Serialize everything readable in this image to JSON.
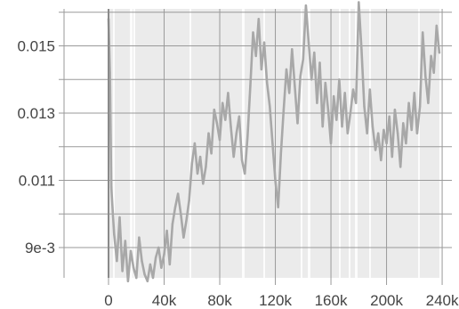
{
  "chart_data": {
    "type": "line",
    "title": "",
    "xlabel": "",
    "ylabel": "",
    "xlim": [
      -32000,
      247000
    ],
    "ylim": [
      0.0081,
      0.0161
    ],
    "x_ticks": [
      {
        "value": 0,
        "label": "0"
      },
      {
        "value": 40000,
        "label": "40k"
      },
      {
        "value": 80000,
        "label": "80k"
      },
      {
        "value": 120000,
        "label": "120k"
      },
      {
        "value": 160000,
        "label": "160k"
      },
      {
        "value": 200000,
        "label": "200k"
      },
      {
        "value": 240000,
        "label": "240k"
      }
    ],
    "y_ticks": [
      {
        "value": 0.009,
        "label": "9e-3"
      },
      {
        "value": 0.011,
        "label": "0.011"
      },
      {
        "value": 0.013,
        "label": "0.013"
      },
      {
        "value": 0.015,
        "label": "0.015"
      }
    ],
    "grid": true,
    "background_band": {
      "x": [
        0,
        238000
      ],
      "color": "#ebebeb"
    },
    "series": [
      {
        "color": "#a8a8a8",
        "x": [
          0,
          1000,
          2000,
          4000,
          6000,
          8000,
          10000,
          12000,
          14000,
          16000,
          18000,
          20000,
          22000,
          24000,
          26000,
          28000,
          30000,
          32000,
          34000,
          36000,
          38000,
          40000,
          42000,
          44000,
          46000,
          48000,
          50000,
          52000,
          54000,
          56000,
          58000,
          60000,
          62000,
          64000,
          66000,
          68000,
          70000,
          72000,
          74000,
          76000,
          78000,
          80000,
          82000,
          84000,
          86000,
          88000,
          90000,
          92000,
          94000,
          96000,
          98000,
          100000,
          102000,
          104000,
          106000,
          108000,
          110000,
          112000,
          114000,
          116000,
          118000,
          120000,
          122000,
          124000,
          126000,
          128000,
          130000,
          132000,
          134000,
          136000,
          138000,
          140000,
          142000,
          144000,
          146000,
          148000,
          150000,
          152000,
          154000,
          156000,
          158000,
          160000,
          162000,
          164000,
          166000,
          168000,
          170000,
          172000,
          174000,
          176000,
          178000,
          180000,
          182000,
          184000,
          186000,
          188000,
          190000,
          192000,
          194000,
          196000,
          198000,
          200000,
          202000,
          204000,
          206000,
          208000,
          210000,
          212000,
          214000,
          216000,
          218000,
          220000,
          222000,
          224000,
          226000,
          228000,
          230000,
          232000,
          234000,
          236000,
          238000
        ],
        "y": [
          0.0158,
          0.0142,
          0.0108,
          0.0094,
          0.0086,
          0.0099,
          0.0083,
          0.0092,
          0.008,
          0.0089,
          0.0084,
          0.0081,
          0.0093,
          0.0086,
          0.0082,
          0.008,
          0.0085,
          0.0081,
          0.0087,
          0.009,
          0.0084,
          0.0088,
          0.0095,
          0.0085,
          0.0097,
          0.0102,
          0.0106,
          0.01,
          0.0093,
          0.0098,
          0.0104,
          0.0115,
          0.0121,
          0.0112,
          0.0117,
          0.0109,
          0.0114,
          0.0124,
          0.0118,
          0.0131,
          0.0127,
          0.0122,
          0.0133,
          0.0128,
          0.0136,
          0.0126,
          0.0117,
          0.0124,
          0.0129,
          0.0116,
          0.0112,
          0.0123,
          0.0138,
          0.0154,
          0.0147,
          0.0158,
          0.0143,
          0.0151,
          0.0139,
          0.0132,
          0.0121,
          0.011,
          0.0102,
          0.0118,
          0.0131,
          0.0143,
          0.0136,
          0.0149,
          0.0138,
          0.0127,
          0.0141,
          0.0146,
          0.0162,
          0.0151,
          0.014,
          0.0148,
          0.0133,
          0.0145,
          0.0126,
          0.0139,
          0.0131,
          0.0121,
          0.0135,
          0.0128,
          0.014,
          0.0126,
          0.0136,
          0.0124,
          0.013,
          0.0137,
          0.0133,
          0.0163,
          0.0149,
          0.0132,
          0.0124,
          0.0137,
          0.0126,
          0.0119,
          0.0124,
          0.0116,
          0.0125,
          0.0121,
          0.0129,
          0.0117,
          0.0131,
          0.0124,
          0.0114,
          0.0127,
          0.0121,
          0.0133,
          0.0125,
          0.0136,
          0.0124,
          0.0132,
          0.0154,
          0.0141,
          0.0133,
          0.0147,
          0.0142,
          0.0156,
          0.0148
        ]
      }
    ]
  }
}
